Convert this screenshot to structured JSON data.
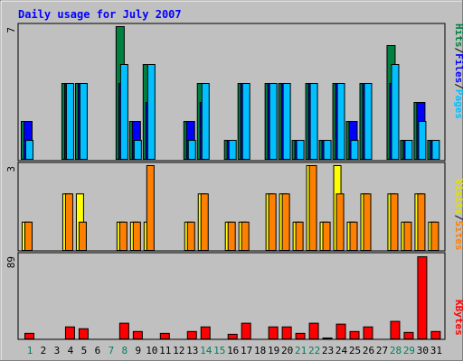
{
  "chart_data": [
    {
      "type": "bar",
      "title": "Daily usage for July 2007",
      "ymax_label": "7",
      "categories": [
        "1",
        "2",
        "3",
        "4",
        "5",
        "6",
        "7",
        "8",
        "9",
        "10",
        "11",
        "12",
        "13",
        "14",
        "15",
        "16",
        "17",
        "18",
        "19",
        "20",
        "21",
        "22",
        "23",
        "24",
        "25",
        "26",
        "27",
        "28",
        "29",
        "30",
        "31"
      ],
      "weekend_days": [
        "1",
        "7",
        "8",
        "14",
        "15",
        "21",
        "22",
        "28",
        "29"
      ],
      "series": [
        {
          "name": "Hits",
          "color": "#008040",
          "values": [
            2,
            0,
            0,
            4,
            4,
            0,
            0,
            7,
            2,
            5,
            0,
            0,
            2,
            4,
            0,
            1,
            4,
            0,
            4,
            4,
            1,
            4,
            1,
            4,
            2,
            4,
            0,
            6,
            1,
            3,
            1
          ]
        },
        {
          "name": "Files",
          "color": "#0000ff",
          "values": [
            2,
            0,
            0,
            4,
            4,
            0,
            0,
            4,
            2,
            3,
            0,
            0,
            2,
            3,
            0,
            1,
            4,
            0,
            4,
            4,
            1,
            4,
            1,
            4,
            2,
            4,
            0,
            4,
            1,
            3,
            1
          ]
        },
        {
          "name": "Pages",
          "color": "#00c0ff",
          "values": [
            1,
            0,
            0,
            4,
            4,
            0,
            0,
            5,
            1,
            5,
            0,
            0,
            1,
            4,
            0,
            1,
            4,
            0,
            4,
            4,
            1,
            4,
            1,
            4,
            1,
            4,
            0,
            5,
            1,
            2,
            1
          ]
        }
      ]
    },
    {
      "type": "bar",
      "ymax_label": "3",
      "series": [
        {
          "name": "Visits",
          "color": "#ffff00",
          "values": [
            1,
            0,
            0,
            2,
            2,
            0,
            0,
            1,
            1,
            1,
            0,
            0,
            1,
            2,
            0,
            1,
            1,
            0,
            2,
            2,
            1,
            3,
            1,
            3,
            1,
            2,
            0,
            2,
            1,
            2,
            1
          ]
        },
        {
          "name": "Sites",
          "color": "#ff8000",
          "values": [
            1,
            0,
            0,
            2,
            1,
            0,
            0,
            1,
            1,
            3,
            0,
            0,
            1,
            2,
            0,
            1,
            1,
            0,
            2,
            2,
            1,
            3,
            1,
            2,
            1,
            2,
            0,
            2,
            1,
            2,
            1
          ]
        }
      ]
    },
    {
      "type": "bar",
      "ymax_label": "89",
      "series": [
        {
          "name": "KBytes",
          "color": "#ff0000",
          "values": [
            6,
            0,
            0,
            13,
            11,
            0,
            0,
            17,
            8,
            0,
            6,
            0,
            8,
            13,
            0,
            5,
            17,
            0,
            13,
            13,
            6,
            17,
            1,
            16,
            8,
            13,
            0,
            19,
            7,
            89,
            8
          ]
        }
      ]
    }
  ],
  "legend": {
    "hits": "Hits",
    "files": "Files",
    "pages": "Pages",
    "visits": "Visits",
    "sites": "Sites",
    "kbytes": "KBytes",
    "slash": "/"
  },
  "colors": {
    "panel_bg": "#c0c0c0",
    "title": "#0000ff",
    "day_normal": "#000000",
    "day_weekend": "#00805f"
  }
}
